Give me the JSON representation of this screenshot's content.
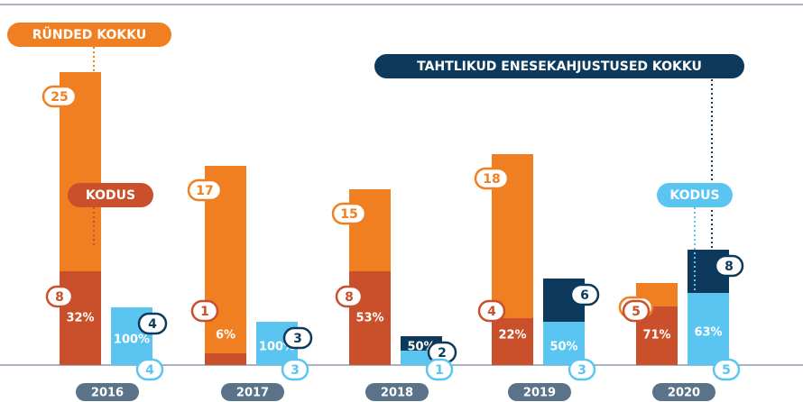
{
  "chart_data": {
    "type": "bar",
    "categories": [
      "2016",
      "2017",
      "2018",
      "2019",
      "2020"
    ],
    "series": [
      {
        "name": "RÜNDED KOKKU",
        "color": "#f07f22",
        "values": [
          25,
          17,
          15,
          18,
          7
        ]
      },
      {
        "name": "KODUS",
        "color": "#c9502a",
        "values": [
          8,
          1,
          8,
          4,
          5
        ],
        "percent": [
          32,
          6,
          53,
          22,
          71
        ],
        "percent_labels": [
          "32%",
          "6%",
          "53%",
          "22%",
          "71%"
        ]
      },
      {
        "name": "TAHTLIKUD ENESEKAHJUSTUSED KOKKU",
        "color": "#0d3a5c",
        "values": [
          4,
          3,
          2,
          6,
          8
        ]
      },
      {
        "name": "KODUS",
        "color": "#5bc5f2",
        "values": [
          4,
          3,
          1,
          3,
          5
        ],
        "percent": [
          100,
          100,
          50,
          50,
          63
        ],
        "percent_labels": [
          "100%",
          "100%",
          "50%",
          "50%",
          "63%"
        ]
      }
    ]
  }
}
